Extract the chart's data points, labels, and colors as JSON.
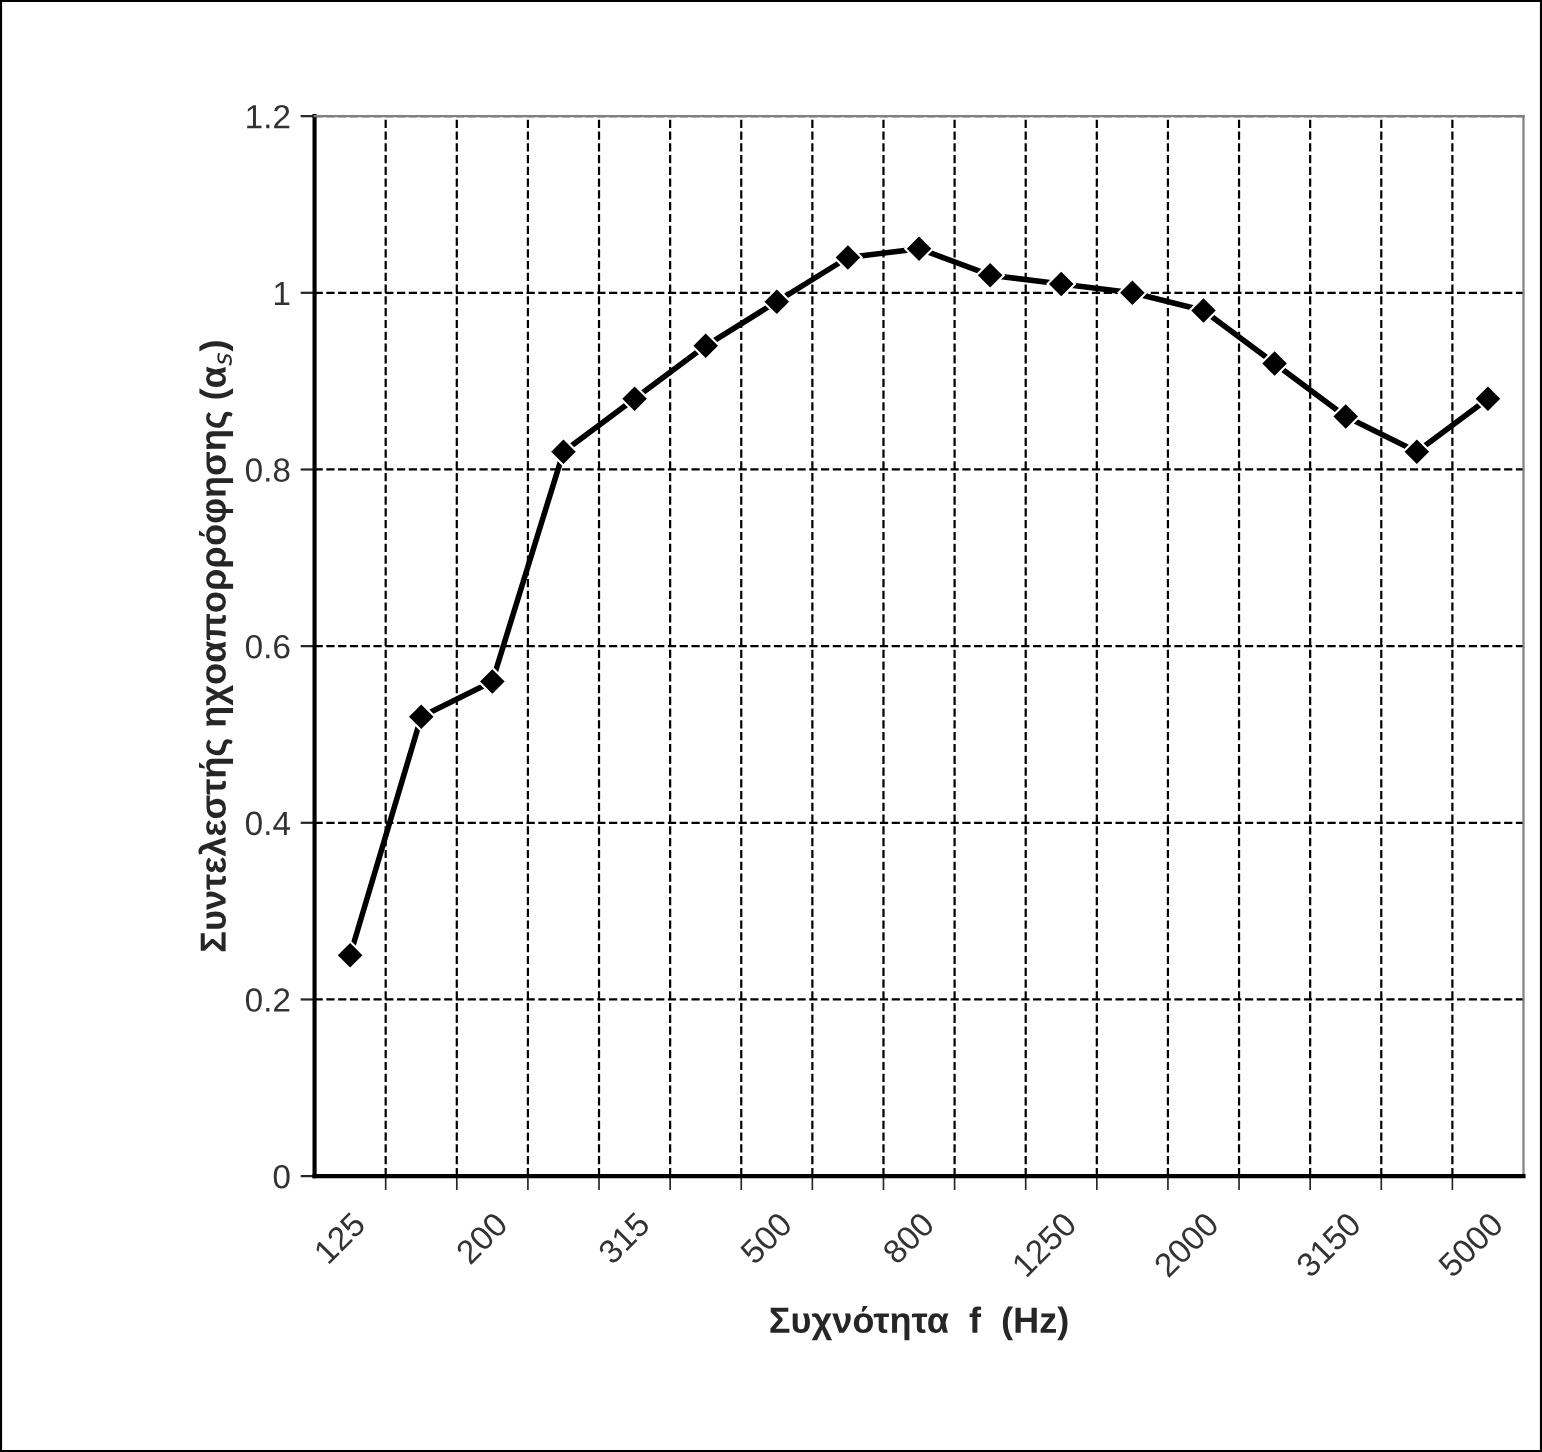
{
  "chart_data": {
    "type": "line",
    "xlabel": "Συχνότητα  f  (Hz)",
    "ylabel": "Συντελεστής ηχοαπορρόφησης (α$_{s}$)",
    "categories": [
      "125",
      null,
      "200",
      null,
      "315",
      null,
      "500",
      null,
      "800",
      null,
      "1250",
      null,
      "2000",
      null,
      "3150",
      null,
      "5000"
    ],
    "series": [
      {
        "color": "#000000",
        "values": [
          0.25,
          0.52,
          0.56,
          0.82,
          0.88,
          0.94,
          0.99,
          1.04,
          1.05,
          1.02,
          1.01,
          1.0,
          0.98,
          0.92,
          0.86,
          0.82,
          0.88
        ]
      }
    ],
    "ylim": [
      0,
      1.2
    ],
    "yticks": [
      0,
      0.2,
      0.4,
      0.6,
      0.8,
      1,
      1.2
    ],
    "grid": true,
    "legend": false,
    "marker": "diamond",
    "line_style": "solid"
  }
}
